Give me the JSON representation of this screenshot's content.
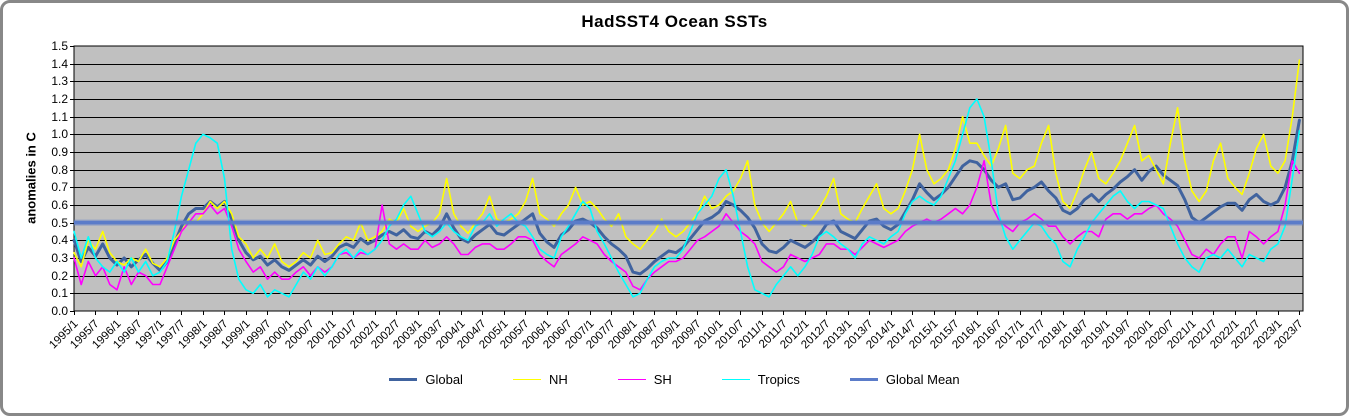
{
  "title": "HadSST4 Ocean SSTs",
  "y_axis": {
    "title": "anomalies in C"
  },
  "chart_data": {
    "type": "line",
    "title": "HadSST4 Ocean SSTs",
    "xlabel": "",
    "ylabel": "anomalies in C",
    "ylim": [
      0.0,
      1.5
    ],
    "y_tick_step": 0.1,
    "grid": "horizontal black gridlines every 0.1",
    "plot_bg": "#C0C0C0",
    "legend_position": "bottom",
    "x_unit": "year/month (monthly sea-surface-temperature anomaly series)",
    "x_start": "1995/1",
    "x_end": "2023/8",
    "x_step_months": 2,
    "y_tick_labels": [
      "1.5",
      "1.4",
      "1.3",
      "1.2",
      "1.1",
      "1.0",
      "0.9",
      "0.8",
      "0.7",
      "0.6",
      "0.5",
      "0.4",
      "0.3",
      "0.2",
      "0.1",
      "0.0"
    ],
    "x_tick_labels": [
      "1995/1",
      "1995/7",
      "1996/1",
      "1996/7",
      "1997/1",
      "1997/7",
      "1998/1",
      "1998/7",
      "1999/1",
      "1999/7",
      "2000/1",
      "2000/7",
      "2001/1",
      "2001/7",
      "2002/1",
      "2002/7",
      "2003/1",
      "2003/7",
      "2004/1",
      "2004/7",
      "2005/1",
      "2005/7",
      "2006/1",
      "2006/7",
      "2007/1",
      "2007/7",
      "2008/1",
      "2008/7",
      "2009/1",
      "2009/7",
      "2010/1",
      "2010/7",
      "2011/1",
      "2011/7",
      "2012/1",
      "2012/7",
      "2013/1",
      "2013/7",
      "2014/1",
      "2014/7",
      "2015/1",
      "2015/7",
      "2016/1",
      "2016/7",
      "2017/1",
      "2017/7",
      "2018/1",
      "2018/7",
      "2019/1",
      "2019/7",
      "2020/1",
      "2020/7",
      "2021/1",
      "2021/7",
      "2022/1",
      "2022/7",
      "2023/1",
      "2023/7"
    ],
    "series": [
      {
        "name": "Global",
        "color": "#40639F",
        "line_width": 3,
        "values": [
          0.4,
          0.28,
          0.36,
          0.31,
          0.38,
          0.3,
          0.26,
          0.3,
          0.25,
          0.29,
          0.32,
          0.27,
          0.23,
          0.28,
          0.38,
          0.48,
          0.55,
          0.58,
          0.58,
          0.62,
          0.59,
          0.62,
          0.52,
          0.4,
          0.33,
          0.29,
          0.31,
          0.26,
          0.29,
          0.25,
          0.23,
          0.26,
          0.29,
          0.26,
          0.31,
          0.28,
          0.31,
          0.36,
          0.38,
          0.36,
          0.41,
          0.38,
          0.4,
          0.43,
          0.45,
          0.43,
          0.46,
          0.42,
          0.41,
          0.45,
          0.43,
          0.47,
          0.55,
          0.47,
          0.41,
          0.39,
          0.43,
          0.46,
          0.49,
          0.44,
          0.43,
          0.46,
          0.49,
          0.52,
          0.55,
          0.44,
          0.39,
          0.36,
          0.43,
          0.46,
          0.51,
          0.52,
          0.5,
          0.47,
          0.42,
          0.38,
          0.35,
          0.31,
          0.22,
          0.21,
          0.24,
          0.28,
          0.31,
          0.34,
          0.33,
          0.36,
          0.41,
          0.46,
          0.51,
          0.53,
          0.56,
          0.62,
          0.6,
          0.57,
          0.53,
          0.47,
          0.38,
          0.34,
          0.33,
          0.36,
          0.4,
          0.38,
          0.36,
          0.39,
          0.43,
          0.49,
          0.51,
          0.45,
          0.43,
          0.41,
          0.46,
          0.51,
          0.52,
          0.48,
          0.46,
          0.49,
          0.56,
          0.63,
          0.72,
          0.67,
          0.63,
          0.66,
          0.7,
          0.76,
          0.82,
          0.85,
          0.84,
          0.8,
          0.74,
          0.7,
          0.72,
          0.63,
          0.64,
          0.68,
          0.7,
          0.73,
          0.68,
          0.64,
          0.57,
          0.55,
          0.58,
          0.63,
          0.66,
          0.62,
          0.66,
          0.69,
          0.73,
          0.76,
          0.8,
          0.74,
          0.79,
          0.82,
          0.77,
          0.74,
          0.71,
          0.63,
          0.53,
          0.5,
          0.53,
          0.56,
          0.59,
          0.61,
          0.61,
          0.57,
          0.63,
          0.66,
          0.62,
          0.6,
          0.62,
          0.7,
          0.85,
          1.08
        ]
      },
      {
        "name": "NH",
        "color": "#FFFF00",
        "line_width": 1.6,
        "values": [
          0.33,
          0.25,
          0.4,
          0.35,
          0.45,
          0.33,
          0.28,
          0.26,
          0.3,
          0.28,
          0.35,
          0.27,
          0.25,
          0.3,
          0.4,
          0.45,
          0.52,
          0.5,
          0.55,
          0.62,
          0.58,
          0.62,
          0.55,
          0.42,
          0.38,
          0.3,
          0.35,
          0.3,
          0.38,
          0.28,
          0.25,
          0.28,
          0.33,
          0.3,
          0.4,
          0.32,
          0.33,
          0.38,
          0.42,
          0.4,
          0.5,
          0.4,
          0.42,
          0.45,
          0.52,
          0.5,
          0.58,
          0.48,
          0.45,
          0.48,
          0.5,
          0.55,
          0.75,
          0.55,
          0.48,
          0.44,
          0.5,
          0.55,
          0.65,
          0.52,
          0.5,
          0.52,
          0.55,
          0.62,
          0.75,
          0.55,
          0.52,
          0.48,
          0.55,
          0.6,
          0.7,
          0.6,
          0.62,
          0.58,
          0.52,
          0.48,
          0.55,
          0.42,
          0.38,
          0.35,
          0.4,
          0.45,
          0.52,
          0.45,
          0.42,
          0.45,
          0.5,
          0.55,
          0.65,
          0.58,
          0.6,
          0.65,
          0.68,
          0.75,
          0.85,
          0.6,
          0.5,
          0.45,
          0.5,
          0.55,
          0.62,
          0.5,
          0.48,
          0.52,
          0.58,
          0.65,
          0.75,
          0.55,
          0.52,
          0.5,
          0.58,
          0.65,
          0.72,
          0.58,
          0.55,
          0.58,
          0.68,
          0.8,
          1.0,
          0.8,
          0.72,
          0.75,
          0.8,
          0.92,
          1.1,
          0.95,
          0.95,
          0.88,
          0.82,
          0.92,
          1.05,
          0.78,
          0.75,
          0.8,
          0.82,
          0.95,
          1.05,
          0.78,
          0.62,
          0.58,
          0.68,
          0.8,
          0.9,
          0.75,
          0.72,
          0.78,
          0.85,
          0.95,
          1.05,
          0.85,
          0.88,
          0.8,
          0.72,
          0.95,
          1.15,
          0.85,
          0.68,
          0.62,
          0.68,
          0.85,
          0.95,
          0.75,
          0.7,
          0.66,
          0.78,
          0.92,
          1.0,
          0.82,
          0.78,
          0.85,
          1.1,
          1.42
        ]
      },
      {
        "name": "SH",
        "color": "#FF00FF",
        "line_width": 1.6,
        "values": [
          0.3,
          0.15,
          0.28,
          0.2,
          0.25,
          0.15,
          0.12,
          0.25,
          0.15,
          0.22,
          0.2,
          0.15,
          0.15,
          0.25,
          0.35,
          0.45,
          0.5,
          0.55,
          0.55,
          0.6,
          0.55,
          0.58,
          0.48,
          0.35,
          0.28,
          0.22,
          0.25,
          0.18,
          0.22,
          0.18,
          0.18,
          0.22,
          0.25,
          0.2,
          0.25,
          0.22,
          0.25,
          0.32,
          0.33,
          0.3,
          0.33,
          0.32,
          0.35,
          0.6,
          0.38,
          0.35,
          0.38,
          0.35,
          0.35,
          0.4,
          0.36,
          0.38,
          0.42,
          0.38,
          0.32,
          0.32,
          0.36,
          0.38,
          0.38,
          0.35,
          0.35,
          0.38,
          0.42,
          0.42,
          0.4,
          0.32,
          0.28,
          0.25,
          0.32,
          0.35,
          0.38,
          0.42,
          0.4,
          0.38,
          0.32,
          0.28,
          0.25,
          0.22,
          0.14,
          0.12,
          0.18,
          0.22,
          0.25,
          0.28,
          0.28,
          0.3,
          0.35,
          0.4,
          0.42,
          0.45,
          0.48,
          0.55,
          0.5,
          0.45,
          0.42,
          0.38,
          0.28,
          0.25,
          0.22,
          0.25,
          0.32,
          0.3,
          0.28,
          0.3,
          0.32,
          0.38,
          0.38,
          0.35,
          0.35,
          0.32,
          0.36,
          0.4,
          0.38,
          0.36,
          0.38,
          0.4,
          0.45,
          0.48,
          0.5,
          0.52,
          0.5,
          0.52,
          0.55,
          0.58,
          0.55,
          0.6,
          0.7,
          0.85,
          0.6,
          0.52,
          0.48,
          0.45,
          0.5,
          0.52,
          0.55,
          0.52,
          0.48,
          0.48,
          0.42,
          0.38,
          0.42,
          0.45,
          0.45,
          0.42,
          0.52,
          0.55,
          0.55,
          0.52,
          0.55,
          0.55,
          0.58,
          0.6,
          0.55,
          0.52,
          0.48,
          0.4,
          0.32,
          0.3,
          0.35,
          0.32,
          0.38,
          0.42,
          0.42,
          0.3,
          0.45,
          0.42,
          0.38,
          0.42,
          0.45,
          0.6,
          0.85,
          0.78
        ]
      },
      {
        "name": "Tropics",
        "color": "#00FFFF",
        "line_width": 1.6,
        "values": [
          0.45,
          0.3,
          0.42,
          0.3,
          0.25,
          0.22,
          0.28,
          0.22,
          0.3,
          0.22,
          0.28,
          0.2,
          0.22,
          0.28,
          0.45,
          0.65,
          0.8,
          0.95,
          1.0,
          0.98,
          0.95,
          0.75,
          0.35,
          0.18,
          0.12,
          0.1,
          0.15,
          0.08,
          0.12,
          0.1,
          0.08,
          0.15,
          0.22,
          0.18,
          0.25,
          0.2,
          0.25,
          0.32,
          0.35,
          0.3,
          0.35,
          0.32,
          0.35,
          0.4,
          0.48,
          0.52,
          0.6,
          0.65,
          0.55,
          0.45,
          0.42,
          0.45,
          0.5,
          0.45,
          0.42,
          0.4,
          0.48,
          0.5,
          0.55,
          0.48,
          0.52,
          0.55,
          0.5,
          0.48,
          0.42,
          0.35,
          0.32,
          0.3,
          0.42,
          0.48,
          0.55,
          0.62,
          0.58,
          0.45,
          0.38,
          0.3,
          0.22,
          0.15,
          0.08,
          0.1,
          0.18,
          0.25,
          0.28,
          0.3,
          0.3,
          0.35,
          0.45,
          0.55,
          0.6,
          0.65,
          0.75,
          0.8,
          0.65,
          0.45,
          0.25,
          0.12,
          0.1,
          0.08,
          0.15,
          0.2,
          0.25,
          0.2,
          0.25,
          0.32,
          0.42,
          0.45,
          0.42,
          0.38,
          0.35,
          0.3,
          0.38,
          0.42,
          0.4,
          0.38,
          0.42,
          0.45,
          0.55,
          0.62,
          0.65,
          0.62,
          0.6,
          0.65,
          0.75,
          0.85,
          1.0,
          1.15,
          1.2,
          1.1,
          0.85,
          0.55,
          0.42,
          0.35,
          0.4,
          0.45,
          0.5,
          0.48,
          0.42,
          0.38,
          0.28,
          0.25,
          0.35,
          0.42,
          0.5,
          0.55,
          0.6,
          0.65,
          0.68,
          0.62,
          0.58,
          0.62,
          0.62,
          0.6,
          0.58,
          0.48,
          0.38,
          0.3,
          0.25,
          0.22,
          0.3,
          0.32,
          0.3,
          0.35,
          0.3,
          0.25,
          0.32,
          0.3,
          0.28,
          0.35,
          0.38,
          0.48,
          0.75,
          1.02
        ]
      },
      {
        "name": "Global Mean",
        "color": "#5B7CC9",
        "line_width": 3.5,
        "constant": 0.5
      }
    ]
  }
}
